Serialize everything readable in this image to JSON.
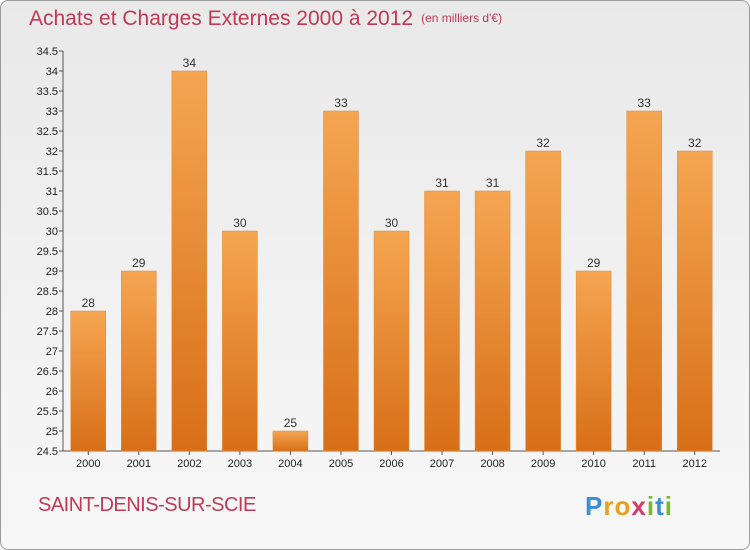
{
  "header": {
    "title": "Achats et Charges Externes 2000 à 2012",
    "subtitle": "(en milliers d'€)"
  },
  "footer": {
    "commune": "SAINT-DENIS-SUR-SCIE",
    "logo_text": "Proxiti"
  },
  "colors": {
    "title": "#c03a55",
    "bar_top": "#f5a552",
    "bar_bottom": "#d86f18"
  },
  "chart_data": {
    "type": "bar",
    "title": "Achats et Charges Externes 2000 à 2012",
    "subtitle": "(en milliers d'€)",
    "categories": [
      "2000",
      "2001",
      "2002",
      "2003",
      "2004",
      "2005",
      "2006",
      "2007",
      "2008",
      "2009",
      "2010",
      "2011",
      "2012"
    ],
    "values": [
      28,
      29,
      34,
      30,
      25,
      33,
      30,
      31,
      31,
      32,
      29,
      33,
      32
    ],
    "data_labels": [
      "28",
      "29",
      "34",
      "30",
      "25",
      "33",
      "30",
      "31",
      "31",
      "32",
      "29",
      "33",
      "32"
    ],
    "y_ticks": [
      "24.5",
      "25",
      "25.5",
      "26",
      "26.5",
      "27",
      "27.5",
      "28",
      "28.5",
      "29",
      "29.5",
      "30",
      "30.5",
      "31",
      "31.5",
      "32",
      "32.5",
      "33",
      "33.5",
      "34",
      "34.5"
    ],
    "ylim": [
      24.5,
      34.5
    ],
    "grid": false,
    "legend": "none"
  }
}
